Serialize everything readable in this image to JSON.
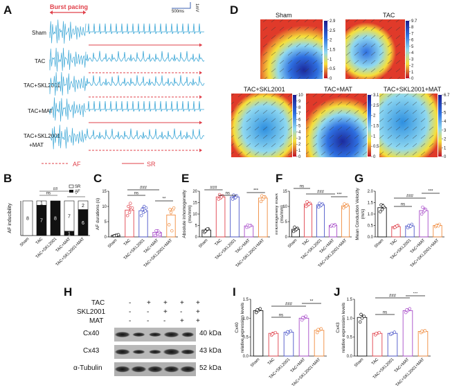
{
  "panel_letters": [
    "A",
    "B",
    "C",
    "D",
    "E",
    "F",
    "G",
    "H",
    "I",
    "J"
  ],
  "groups": [
    "Sham",
    "TAC",
    "TAC+SKL2001",
    "TAC+MAT",
    "TAC+SKL2001+MAT"
  ],
  "colors": {
    "trace": "#3aa6d6",
    "red": "#e0404a",
    "sham": "#111111",
    "tac": "#e0404a",
    "skl": "#4a54c8",
    "mat": "#a648c8",
    "combo": "#f08a3c"
  },
  "panelA": {
    "burst_label": "Burst pacing",
    "scale_time": "500ms",
    "scale_amp": "1mV",
    "rows": [
      "Sham",
      "TAC",
      "TAC+SKL2001",
      "TAC+MAT",
      "TAC+SKL2001",
      "+MAT"
    ],
    "legend_af": "AF",
    "legend_sr": "SR"
  },
  "panelB": {
    "ylabel": "AF  inducibility",
    "legend": [
      "SR",
      "AF"
    ],
    "sig": [
      "ns",
      "##",
      "*"
    ],
    "xlabels": [
      "Sham",
      "TAC",
      "TAC+SKL2001",
      "TAC+MAT",
      "TAC+SKL2001+MAT"
    ]
  },
  "chart_data": [
    {
      "panel": "B",
      "type": "bar",
      "stacked": true,
      "categories": [
        "Sham",
        "TAC",
        "TAC+SKL2001",
        "TAC+MAT",
        "TAC+SKL2001+MAT"
      ],
      "series": [
        {
          "name": "SR",
          "values": [
            8,
            1,
            0,
            7,
            2
          ]
        },
        {
          "name": "AF",
          "values": [
            0,
            7,
            8,
            1,
            6
          ]
        }
      ],
      "bar_labels_sr": [
        "8",
        "1",
        "",
        "7",
        "2"
      ],
      "bar_labels_af": [
        "",
        "7",
        "8",
        "1",
        "6"
      ],
      "ylabel": "AF  inducibility"
    },
    {
      "panel": "C",
      "type": "bar",
      "categories": [
        "Sham",
        "TAC",
        "TAC+SKL2001",
        "TAC+MAT",
        "TAC+SKL2001+MAT"
      ],
      "values": [
        0.5,
        8.8,
        8.6,
        1.5,
        7.2
      ],
      "errors": [
        0.2,
        1.2,
        1.0,
        0.9,
        2.0
      ],
      "points": [
        [
          0.3,
          0.5,
          0.6,
          0.4,
          0.5,
          0.7
        ],
        [
          7,
          8,
          9,
          10,
          11,
          9.5
        ],
        [
          7,
          8,
          8.5,
          9,
          10,
          9.5
        ],
        [
          0.5,
          1,
          1.5,
          2,
          1,
          0.8
        ],
        [
          4,
          8,
          9,
          9,
          2,
          9.5
        ]
      ],
      "ylabel": "AF durations (s)",
      "ylim": [
        0,
        15
      ],
      "yticks": [
        "0",
        "5",
        "10",
        "15"
      ],
      "sig": [
        "###",
        "ns",
        "**"
      ]
    },
    {
      "panel": "E",
      "type": "bar",
      "categories": [
        "Sham",
        "TAC",
        "TAC+SKL2001",
        "TAC+MAT",
        "TAC+SKL2001+MAT"
      ],
      "values": [
        3.0,
        17.5,
        17.5,
        4.8,
        17.0
      ],
      "errors": [
        0.5,
        0.8,
        0.7,
        0.4,
        0.9
      ],
      "points": [
        [
          2,
          3,
          3.5,
          2.5,
          3.5
        ],
        [
          16.5,
          17,
          18,
          18.5,
          17.5
        ],
        [
          16.5,
          17,
          18,
          18.3,
          17.2
        ],
        [
          4.2,
          4.5,
          5,
          5.2,
          4.9
        ],
        [
          15.5,
          16.5,
          17.5,
          18,
          17.5
        ]
      ],
      "ylabel": "Absolute inhomogeneity\n(ms/mm)",
      "ylim": [
        0,
        20
      ],
      "yticks": [
        "0",
        "5",
        "10",
        "15",
        "20"
      ],
      "sig": [
        "###",
        "ns",
        "***"
      ]
    },
    {
      "panel": "F",
      "type": "bar",
      "categories": [
        "Sham",
        "TAC",
        "TAC+SKL2001",
        "TAC+MAT",
        "TAC+SKL2001+MAT"
      ],
      "values": [
        2.5,
        10.8,
        10.5,
        3.8,
        10.2
      ],
      "errors": [
        0.4,
        0.5,
        0.5,
        0.3,
        0.5
      ],
      "points": [
        [
          1.8,
          2.2,
          2.8,
          3.2,
          2.5
        ],
        [
          10,
          10.5,
          11,
          11.5,
          10.8
        ],
        [
          9.8,
          10.2,
          10.8,
          11,
          10.5
        ],
        [
          3.5,
          3.8,
          4,
          3.9,
          3.6
        ],
        [
          9.5,
          10,
          10.5,
          10.8,
          10.2
        ]
      ],
      "ylabel": "Inhomogeneity index\n(ms/mm)",
      "ylim": [
        0,
        15
      ],
      "yticks": [
        "0",
        "5",
        "10",
        "15"
      ],
      "sig": [
        "ns",
        "###",
        "***"
      ]
    },
    {
      "panel": "G",
      "type": "bar",
      "categories": [
        "Sham",
        "TAC",
        "TAC+SKL2001",
        "TAC+MAT",
        "TAC+SKL2001+MAT"
      ],
      "values": [
        1.28,
        0.45,
        0.48,
        1.15,
        0.5
      ],
      "errors": [
        0.15,
        0.05,
        0.06,
        0.12,
        0.06
      ],
      "points": [
        [
          1.1,
          1.2,
          1.3,
          1.4,
          1.35
        ],
        [
          0.4,
          0.45,
          0.5,
          0.42,
          0.48
        ],
        [
          0.4,
          0.45,
          0.55,
          0.5,
          0.47
        ],
        [
          1.0,
          1.1,
          1.2,
          1.3,
          1.15
        ],
        [
          0.45,
          0.5,
          0.55,
          0.5,
          0.48
        ]
      ],
      "ylabel": "Mean Conduction Velocity\n(m/s)",
      "ylim": [
        0,
        2.0
      ],
      "yticks": [
        "0.0",
        "0.5",
        "1.0",
        "1.5",
        "2.0"
      ],
      "sig": [
        "ns",
        "###",
        "***"
      ]
    },
    {
      "panel": "I",
      "type": "bar",
      "categories": [
        "Sham",
        "TAC",
        "TAC+SKL2001",
        "TAC+MAT",
        "TAC+SKL2001+MAT"
      ],
      "values": [
        1.2,
        0.6,
        0.63,
        1.0,
        0.68
      ],
      "errors": [
        0.05,
        0.03,
        0.04,
        0.05,
        0.05
      ],
      "points": [
        [
          1.15,
          1.2,
          1.25,
          1.22
        ],
        [
          0.55,
          0.6,
          0.62,
          0.58
        ],
        [
          0.58,
          0.62,
          0.66,
          0.64
        ],
        [
          0.95,
          1.0,
          1.05,
          1.02
        ],
        [
          0.62,
          0.68,
          0.72,
          0.7
        ]
      ],
      "ylabel": "Cx40\nrelative expression levels",
      "ylim": [
        0,
        1.5
      ],
      "yticks": [
        "0.0",
        "0.5",
        "1.0",
        "1.5"
      ],
      "sig": [
        "###",
        "ns",
        "**"
      ]
    },
    {
      "panel": "J",
      "type": "bar",
      "categories": [
        "Sham",
        "TAC",
        "TAC+SKL2001",
        "TAC+MAT",
        "TAC+SKL2001+MAT"
      ],
      "values": [
        1.02,
        0.6,
        0.6,
        1.2,
        0.65
      ],
      "errors": [
        0.06,
        0.03,
        0.03,
        0.05,
        0.03
      ],
      "points": [
        [
          0.9,
          1.0,
          1.05,
          1.1
        ],
        [
          0.56,
          0.6,
          0.62,
          0.6
        ],
        [
          0.57,
          0.6,
          0.63,
          0.6
        ],
        [
          1.15,
          1.2,
          1.25,
          1.22
        ],
        [
          0.62,
          0.65,
          0.67,
          0.66
        ]
      ],
      "ylabel": "Cx43\nrelative expression levels",
      "ylim": [
        0,
        1.5
      ],
      "yticks": [
        "0.0",
        "0.5",
        "1.0",
        "1.5"
      ],
      "sig": [
        "###",
        "ns",
        "***"
      ]
    }
  ],
  "panelD": {
    "maps": [
      {
        "title": "Sham",
        "ticks": [
          "2.9",
          "2.5",
          "2",
          "1.5",
          "1",
          "0.5",
          "0"
        ]
      },
      {
        "title": "TAC",
        "ticks": [
          "9.7",
          "8",
          "7",
          "6",
          "5",
          "4",
          "3",
          "2",
          "1",
          "0"
        ]
      },
      {
        "title": "TAC+SKL2001",
        "ticks": [
          "10",
          "9",
          "8",
          "7",
          "6",
          "5",
          "4",
          "3",
          "2",
          "1",
          "0"
        ]
      },
      {
        "title": "TAC+MAT",
        "ticks": [
          "3.1",
          "2.5",
          "2",
          "1.5",
          "1",
          "0.5",
          "0"
        ]
      },
      {
        "title": "TAC+SKL2001+MAT",
        "ticks": [
          "6.7",
          "6",
          "5",
          "4",
          "3",
          "2",
          "1",
          "0"
        ]
      }
    ]
  },
  "panelH": {
    "rows": [
      "TAC",
      "SKL2001",
      "MAT"
    ],
    "signs": [
      [
        "-",
        "+",
        "+",
        "+",
        "+"
      ],
      [
        "-",
        "-",
        "+",
        "-",
        "+"
      ],
      [
        "-",
        "-",
        "-",
        "+",
        "+"
      ]
    ],
    "bands": [
      "Cx40",
      "Cx43",
      "α-Tubulin"
    ],
    "kda": [
      "40 kDa",
      "43 kDa",
      "52 kDa"
    ]
  }
}
